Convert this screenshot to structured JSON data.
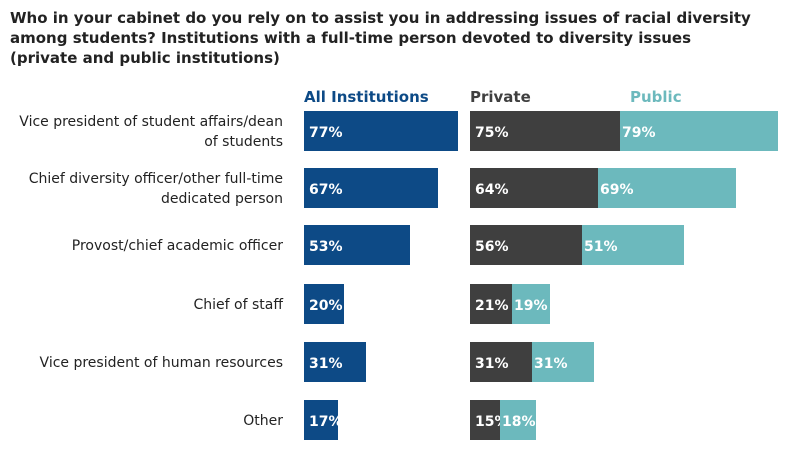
{
  "title_lines": [
    "Who in your cabinet do you rely on to assist you in addressing issues of racial diversity",
    "among students? Institutions with a full-time person devoted to diversity issues",
    "(private and public institutions)"
  ],
  "colors": {
    "all": "#0d4a86",
    "private": "#3f3f3f",
    "public": "#6cb9bd"
  },
  "chart_data": {
    "type": "bar",
    "title": "Who in your cabinet do you rely on to assist you in addressing issues of racial diversity among students? Institutions with a full-time person devoted to diversity issues (private and public institutions)",
    "categories": [
      [
        "Vice president of student affairs/dean",
        "of students"
      ],
      [
        "Chief diversity officer/other full-time",
        "dedicated person"
      ],
      [
        "Provost/chief academic officer"
      ],
      [
        "Chief of staff"
      ],
      [
        "Vice president of human resources"
      ],
      [
        "Other"
      ]
    ],
    "series": [
      {
        "name": "All Institutions",
        "values": [
          77,
          67,
          53,
          20,
          31,
          17
        ],
        "labels": [
          "77%",
          "67%",
          "53%",
          "20%",
          "31%",
          "17%"
        ]
      },
      {
        "name": "Private",
        "values": [
          75,
          64,
          56,
          21,
          31,
          15
        ],
        "labels": [
          "75%",
          "64%",
          "56%",
          "21%",
          "31%",
          "15%"
        ]
      },
      {
        "name": "Public",
        "values": [
          79,
          69,
          51,
          19,
          31,
          18
        ],
        "labels": [
          "79%",
          "69%",
          "51%",
          "19%",
          "31%",
          "18%"
        ]
      }
    ],
    "unit": "%",
    "legend_placement": "top",
    "grid": false
  }
}
